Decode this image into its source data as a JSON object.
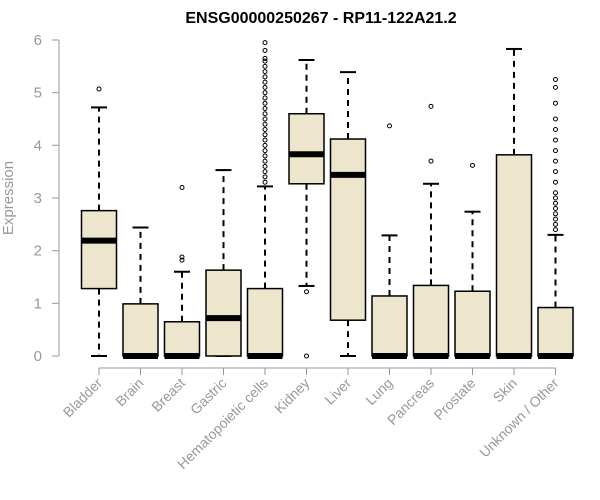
{
  "chart_data": {
    "type": "box",
    "title": "ENSG00000250267 - RP11-122A21.2",
    "xlabel": "",
    "ylabel": "Expression",
    "ylim": [
      0,
      6
    ],
    "yticks": [
      "0",
      "1",
      "2",
      "3",
      "4",
      "5",
      "6"
    ],
    "colors": {
      "box_fill": "#ede6cc",
      "stroke": "#000000",
      "axis": "#999999"
    },
    "categories": [
      "Bladder",
      "Brain",
      "Breast",
      "Gastric",
      "Hematopoietic cells",
      "Kidney",
      "Liver",
      "Lung",
      "Pancreas",
      "Prostate",
      "Skin",
      "Unknown / Other"
    ],
    "boxes": [
      {
        "q1": 1.28,
        "median": 2.19,
        "q3": 2.76,
        "whisker_low": 0.0,
        "whisker_high": 4.72,
        "outliers": [
          5.07
        ]
      },
      {
        "q1": 0.0,
        "median": 0.0,
        "q3": 0.99,
        "whisker_low": 0.0,
        "whisker_high": 2.44,
        "outliers": []
      },
      {
        "q1": 0.0,
        "median": 0.0,
        "q3": 0.65,
        "whisker_low": 0.0,
        "whisker_high": 1.6,
        "outliers": [
          1.82,
          1.88,
          3.2
        ]
      },
      {
        "q1": 0.0,
        "median": 0.72,
        "q3": 1.63,
        "whisker_low": 0.0,
        "whisker_high": 3.53,
        "outliers": []
      },
      {
        "q1": 0.0,
        "median": 0.0,
        "q3": 1.28,
        "whisker_low": 0.0,
        "whisker_high": 3.22,
        "outliers": [
          3.3,
          3.4,
          3.5,
          3.6,
          3.7,
          3.8,
          3.9,
          4.0,
          4.1,
          4.2,
          4.3,
          4.4,
          4.5,
          4.6,
          4.7,
          4.8,
          4.9,
          5.0,
          5.1,
          5.2,
          5.3,
          5.4,
          5.5,
          5.6,
          5.65,
          5.8,
          5.95
        ]
      },
      {
        "q1": 3.27,
        "median": 3.83,
        "q3": 4.6,
        "whisker_low": 1.33,
        "whisker_high": 5.62,
        "outliers": [
          1.22,
          0.0
        ]
      },
      {
        "q1": 0.68,
        "median": 3.44,
        "q3": 4.12,
        "whisker_low": 0.0,
        "whisker_high": 5.39,
        "outliers": []
      },
      {
        "q1": 0.0,
        "median": 0.0,
        "q3": 1.14,
        "whisker_low": 0.0,
        "whisker_high": 2.29,
        "outliers": [
          4.37
        ]
      },
      {
        "q1": 0.0,
        "median": 0.0,
        "q3": 1.34,
        "whisker_low": 0.0,
        "whisker_high": 3.27,
        "outliers": [
          3.7,
          4.74
        ]
      },
      {
        "q1": 0.0,
        "median": 0.0,
        "q3": 1.23,
        "whisker_low": 0.0,
        "whisker_high": 2.74,
        "outliers": [
          3.62
        ]
      },
      {
        "q1": 0.0,
        "median": 0.0,
        "q3": 3.82,
        "whisker_low": 0.0,
        "whisker_high": 5.83,
        "outliers": []
      },
      {
        "q1": 0.0,
        "median": 0.0,
        "q3": 0.92,
        "whisker_low": 0.0,
        "whisker_high": 2.3,
        "outliers": [
          2.4,
          2.5,
          2.6,
          2.7,
          2.8,
          2.9,
          3.0,
          3.1,
          3.3,
          3.5,
          3.7,
          3.9,
          4.1,
          4.3,
          4.5,
          4.8,
          5.1,
          5.25
        ]
      }
    ]
  }
}
